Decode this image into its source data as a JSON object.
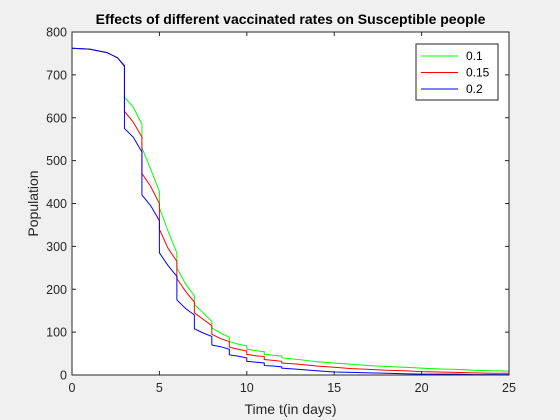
{
  "chart_data": {
    "type": "line",
    "title": "Effects of different vaccinated rates on Susceptible people",
    "xlabel": "Time t(in days)",
    "ylabel": "Population",
    "xlim": [
      0,
      25
    ],
    "ylim": [
      0,
      800
    ],
    "x_ticks": [
      0,
      5,
      10,
      15,
      20,
      25
    ],
    "y_ticks": [
      0,
      100,
      200,
      300,
      400,
      500,
      600,
      700,
      800
    ],
    "grid": false,
    "legend_position": "top-right",
    "series": [
      {
        "name": "0.1",
        "color": "#00ff00",
        "points": [
          [
            0,
            762
          ],
          [
            1,
            760
          ],
          [
            2,
            752
          ],
          [
            2.6,
            740
          ],
          [
            3,
            722
          ],
          [
            3,
            648
          ],
          [
            3.5,
            625
          ],
          [
            4,
            585
          ],
          [
            4,
            530
          ],
          [
            4.5,
            480
          ],
          [
            5,
            428
          ],
          [
            5,
            390
          ],
          [
            5.5,
            335
          ],
          [
            6,
            285
          ],
          [
            6,
            250
          ],
          [
            6.5,
            212
          ],
          [
            7,
            185
          ],
          [
            7,
            165
          ],
          [
            7.5,
            145
          ],
          [
            8,
            125
          ],
          [
            8,
            110
          ],
          [
            8.5,
            98
          ],
          [
            9,
            88
          ],
          [
            9,
            78
          ],
          [
            9.5,
            72
          ],
          [
            10,
            68
          ],
          [
            10,
            60
          ],
          [
            10.5,
            57
          ],
          [
            11,
            54
          ],
          [
            11,
            48
          ],
          [
            11.5,
            46
          ],
          [
            12,
            44
          ],
          [
            12,
            40
          ],
          [
            13,
            36
          ],
          [
            14,
            31
          ],
          [
            15,
            28
          ],
          [
            16,
            25
          ],
          [
            17,
            22
          ],
          [
            18,
            20
          ],
          [
            19,
            18
          ],
          [
            20,
            16
          ],
          [
            21,
            14
          ],
          [
            22,
            13
          ],
          [
            23,
            11
          ],
          [
            24,
            10
          ],
          [
            25,
            9
          ]
        ]
      },
      {
        "name": "0.15",
        "color": "#ff0000",
        "points": [
          [
            0,
            762
          ],
          [
            1,
            760
          ],
          [
            2,
            752
          ],
          [
            2.6,
            740
          ],
          [
            3,
            722
          ],
          [
            3,
            615
          ],
          [
            3.5,
            590
          ],
          [
            4,
            555
          ],
          [
            4,
            470
          ],
          [
            4.5,
            440
          ],
          [
            5,
            400
          ],
          [
            5,
            340
          ],
          [
            5.5,
            295
          ],
          [
            6,
            265
          ],
          [
            6,
            225
          ],
          [
            6.5,
            195
          ],
          [
            7,
            170
          ],
          [
            7,
            145
          ],
          [
            7.5,
            130
          ],
          [
            8,
            115
          ],
          [
            8,
            95
          ],
          [
            8.5,
            85
          ],
          [
            9,
            78
          ],
          [
            9,
            65
          ],
          [
            9.5,
            60
          ],
          [
            10,
            56
          ],
          [
            10,
            48
          ],
          [
            10.5,
            45
          ],
          [
            11,
            43
          ],
          [
            11,
            36
          ],
          [
            11.5,
            34
          ],
          [
            12,
            32
          ],
          [
            12,
            28
          ],
          [
            13,
            25
          ],
          [
            14,
            21
          ],
          [
            15,
            18
          ],
          [
            16,
            15
          ],
          [
            17,
            13
          ],
          [
            18,
            11
          ],
          [
            19,
            10
          ],
          [
            20,
            8
          ],
          [
            21,
            7
          ],
          [
            22,
            6
          ],
          [
            23,
            5
          ],
          [
            24,
            4
          ],
          [
            25,
            4
          ]
        ]
      },
      {
        "name": "0.2",
        "color": "#0000ff",
        "points": [
          [
            0,
            762
          ],
          [
            1,
            760
          ],
          [
            2,
            752
          ],
          [
            2.6,
            740
          ],
          [
            3,
            720
          ],
          [
            3,
            575
          ],
          [
            3.5,
            555
          ],
          [
            4,
            520
          ],
          [
            4,
            420
          ],
          [
            4.5,
            395
          ],
          [
            5,
            360
          ],
          [
            5,
            285
          ],
          [
            5.5,
            255
          ],
          [
            6,
            230
          ],
          [
            6,
            175
          ],
          [
            6.5,
            155
          ],
          [
            7,
            140
          ],
          [
            7,
            108
          ],
          [
            7.5,
            98
          ],
          [
            8,
            90
          ],
          [
            8,
            70
          ],
          [
            8.5,
            66
          ],
          [
            9,
            60
          ],
          [
            9,
            47
          ],
          [
            9.5,
            44
          ],
          [
            10,
            40
          ],
          [
            10,
            32
          ],
          [
            10.5,
            30
          ],
          [
            11,
            28
          ],
          [
            11,
            22
          ],
          [
            11.5,
            21
          ],
          [
            12,
            19
          ],
          [
            12,
            16
          ],
          [
            13,
            13
          ],
          [
            14,
            10
          ],
          [
            15,
            7
          ],
          [
            16,
            6
          ],
          [
            17,
            5
          ],
          [
            18,
            4
          ],
          [
            19,
            3
          ],
          [
            20,
            2
          ],
          [
            21,
            2
          ],
          [
            22,
            2
          ],
          [
            23,
            1
          ],
          [
            24,
            1
          ],
          [
            25,
            1
          ]
        ]
      }
    ]
  }
}
